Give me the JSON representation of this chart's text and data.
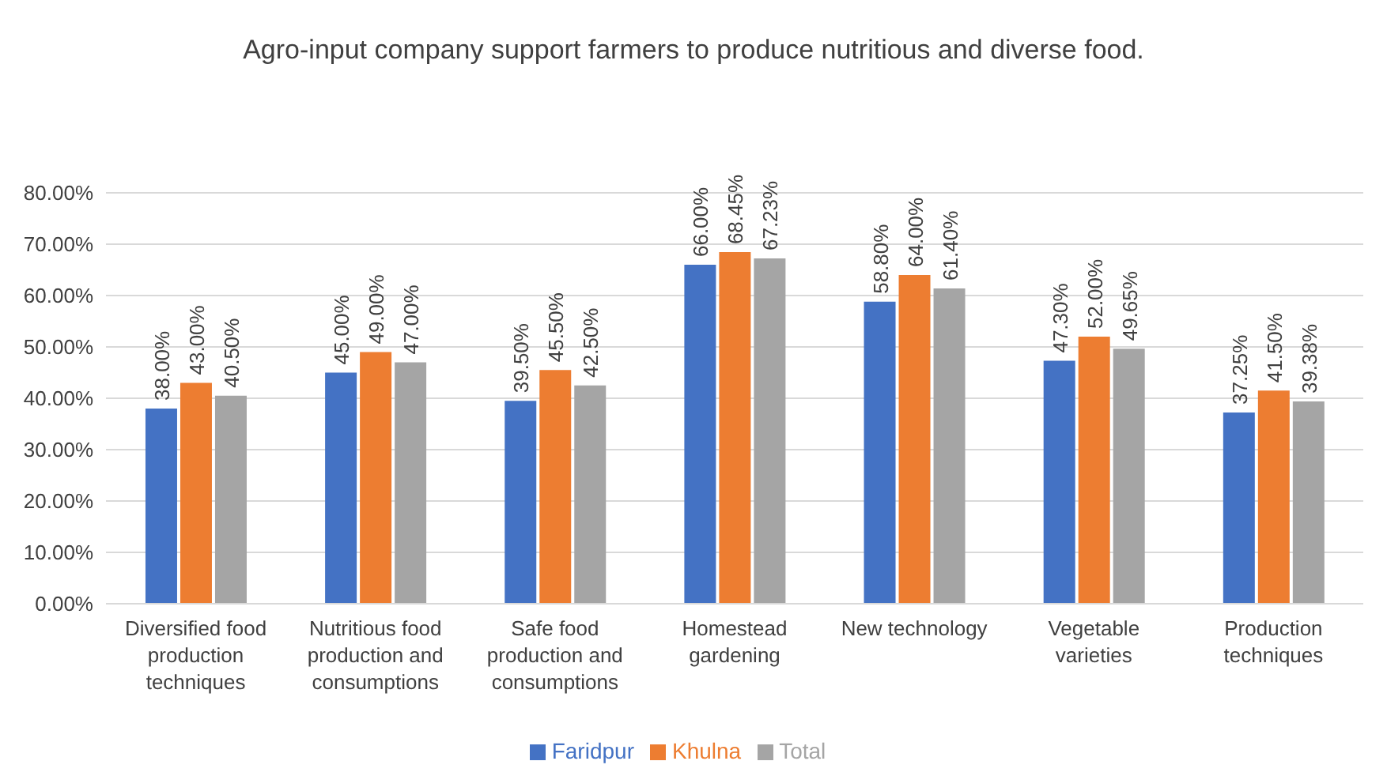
{
  "chart_data": {
    "type": "bar",
    "title": "Agro-input company support farmers to produce nutritious and diverse food.",
    "categories": [
      "Diversified food production techniques",
      "Nutritious food production and consumptions",
      "Safe food production and consumptions",
      "Homestead gardening",
      "New technology",
      "Vegetable varieties",
      "Production techniques"
    ],
    "series": [
      {
        "name": "Faridpur",
        "color": "#4472c4",
        "values": [
          38,
          45,
          39.5,
          66,
          58.8,
          47.3,
          37.25
        ],
        "value_labels": [
          "38.00%",
          "45.00%",
          "39.50%",
          "66.00%",
          "58.80%",
          "47.30%",
          "37.25%"
        ]
      },
      {
        "name": "Khulna",
        "color": "#ed7d31",
        "values": [
          43,
          49,
          45.5,
          68.45,
          64,
          52,
          41.5
        ],
        "value_labels": [
          "43.00%",
          "49.00%",
          "45.50%",
          "68.45%",
          "64.00%",
          "52.00%",
          "41.50%"
        ]
      },
      {
        "name": "Total",
        "color": "#a5a5a5",
        "values": [
          40.5,
          47,
          42.5,
          67.23,
          61.4,
          49.65,
          39.38
        ],
        "value_labels": [
          "40.50%",
          "47.00%",
          "42.50%",
          "67.23%",
          "61.40%",
          "49.65%",
          "39.38%"
        ]
      }
    ],
    "ylim": [
      0,
      80
    ],
    "yticks": [
      {
        "value": 0,
        "label": "0.00%"
      },
      {
        "value": 10,
        "label": "10.00%"
      },
      {
        "value": 20,
        "label": "20.00%"
      },
      {
        "value": 30,
        "label": "30.00%"
      },
      {
        "value": 40,
        "label": "40.00%"
      },
      {
        "value": 50,
        "label": "50.00%"
      },
      {
        "value": 60,
        "label": "60.00%"
      },
      {
        "value": 70,
        "label": "70.00%"
      },
      {
        "value": 80,
        "label": "80.00%"
      }
    ],
    "grid": "y",
    "legend": "bottom"
  }
}
